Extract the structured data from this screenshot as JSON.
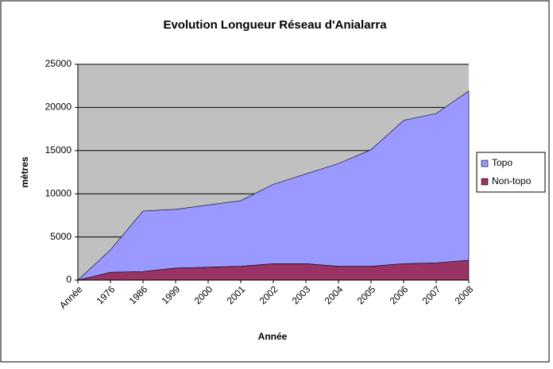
{
  "chart_data": {
    "type": "stacked_area",
    "title": "Evolution Longueur Réseau d'Anialarra",
    "x_label": "Année",
    "y_label": "mètres",
    "categories": [
      "Année",
      "1976",
      "1986",
      "1999",
      "2000",
      "2001",
      "2002",
      "2003",
      "2004",
      "2005",
      "2006",
      "2007",
      "2008"
    ],
    "series": [
      {
        "name": "Non-topo",
        "color": "#993366",
        "values": [
          0,
          900,
          1000,
          1400,
          1500,
          1600,
          1900,
          1900,
          1600,
          1600,
          1900,
          2000,
          2300
        ]
      },
      {
        "name": "Topo",
        "color": "#9999ff",
        "values": [
          0,
          2600,
          7000,
          6800,
          7200,
          7600,
          9200,
          10400,
          11900,
          13500,
          16600,
          17300,
          19600
        ]
      }
    ],
    "ylim": [
      0,
      25000
    ],
    "yticks": [
      0,
      5000,
      10000,
      15000,
      20000,
      25000
    ],
    "grid": true,
    "plot_background": "#c0c0c0",
    "legend_position": "right"
  }
}
